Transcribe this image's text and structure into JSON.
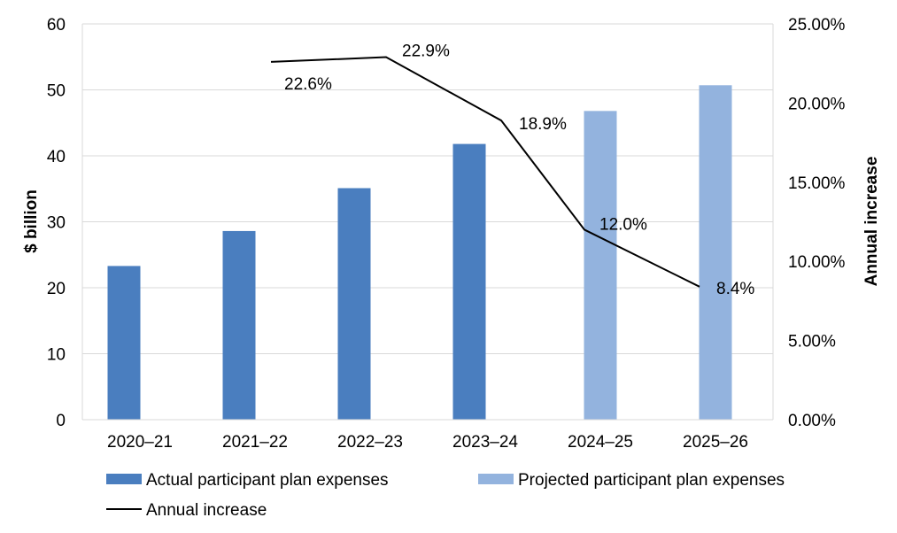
{
  "chart_data": {
    "type": "bar",
    "categories": [
      "2020–21",
      "2021–22",
      "2022–23",
      "2023–24",
      "2024–25",
      "2025–26"
    ],
    "series": [
      {
        "name": "Actual participant plan expenses",
        "type": "bar",
        "axis": "left",
        "color": "#4a7ebf",
        "values": [
          23.3,
          28.6,
          35.1,
          41.8,
          null,
          null
        ]
      },
      {
        "name": "Projected participant plan expenses",
        "type": "bar",
        "axis": "left",
        "color": "#93b3de",
        "values": [
          null,
          null,
          null,
          null,
          46.8,
          50.7
        ]
      },
      {
        "name": "Annual increase",
        "type": "line",
        "axis": "right",
        "color": "#000000",
        "values": [
          null,
          22.6,
          22.9,
          18.9,
          12.0,
          8.4
        ],
        "labels": [
          null,
          "22.6%",
          "22.9%",
          "18.9%",
          "12.0%",
          "8.4%"
        ]
      }
    ],
    "ylabel": "$ billion",
    "ylabel_right": "Annual increase",
    "ylim": [
      0,
      60
    ],
    "ylim_right": [
      0,
      25
    ],
    "yticks": [
      "0",
      "10",
      "20",
      "30",
      "40",
      "50",
      "60"
    ],
    "yticks_right": [
      "0.00%",
      "5.00%",
      "10.00%",
      "15.00%",
      "20.00%",
      "25.00%"
    ],
    "grid": true,
    "legend_position": "bottom",
    "gridline_color": "#d9d9d9"
  }
}
